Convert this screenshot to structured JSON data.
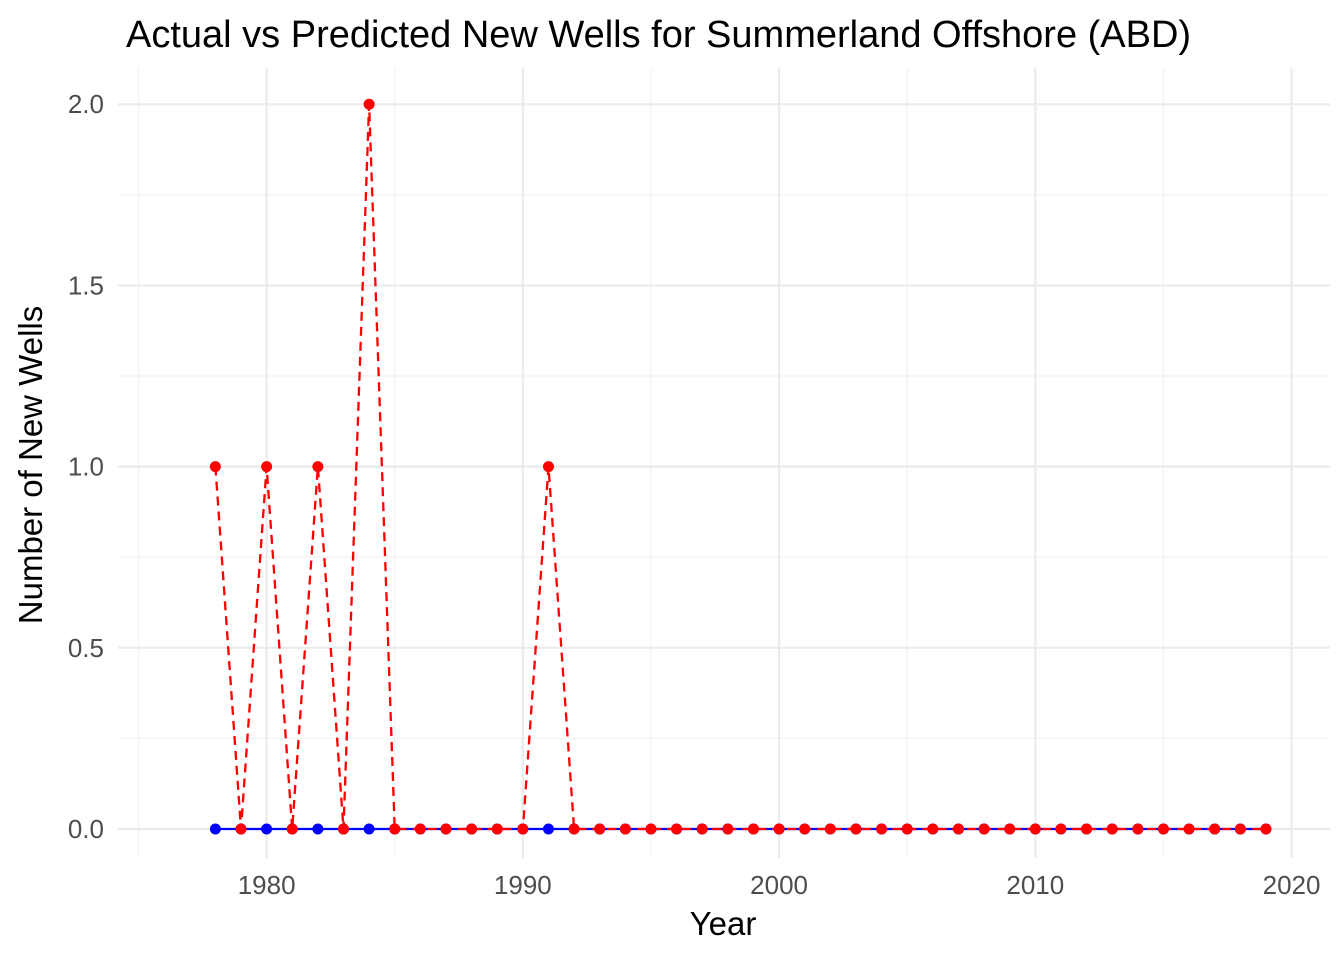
{
  "chart_data": {
    "type": "line",
    "title": "Actual vs Predicted New Wells for Summerland Offshore (ABD)",
    "xlabel": "Year",
    "ylabel": "Number of New Wells",
    "xlim": [
      1974.2,
      2021.5
    ],
    "ylim": [
      -0.08,
      2.1
    ],
    "x_ticks": [
      1980,
      1990,
      2000,
      2010,
      2020
    ],
    "y_ticks": [
      0.0,
      0.5,
      1.0,
      1.5,
      2.0
    ],
    "x_tick_labels": [
      "1980",
      "1990",
      "2000",
      "2010",
      "2020"
    ],
    "y_tick_labels": [
      "0.0",
      "0.5",
      "1.0",
      "1.5",
      "2.0"
    ],
    "grid": true,
    "legend": "none",
    "x": [
      1978,
      1979,
      1980,
      1981,
      1982,
      1983,
      1984,
      1985,
      1986,
      1987,
      1988,
      1989,
      1990,
      1991,
      1992,
      1993,
      1994,
      1995,
      1996,
      1997,
      1998,
      1999,
      2000,
      2001,
      2002,
      2003,
      2004,
      2005,
      2006,
      2007,
      2008,
      2009,
      2010,
      2011,
      2012,
      2013,
      2014,
      2015,
      2016,
      2017,
      2018,
      2019
    ],
    "series": [
      {
        "color": "#0000ff",
        "line_style": "solid",
        "values": [
          0,
          0,
          0,
          0,
          0,
          0,
          0,
          0,
          0,
          0,
          0,
          0,
          0,
          0,
          0,
          0,
          0,
          0,
          0,
          0,
          0,
          0,
          0,
          0,
          0,
          0,
          0,
          0,
          0,
          0,
          0,
          0,
          0,
          0,
          0,
          0,
          0,
          0,
          0,
          0,
          0,
          0
        ]
      },
      {
        "color": "#ff0000",
        "line_style": "dashed",
        "values": [
          1,
          0,
          1,
          0,
          1,
          0,
          2,
          0,
          0,
          0,
          0,
          0,
          0,
          1,
          0,
          0,
          0,
          0,
          0,
          0,
          0,
          0,
          0,
          0,
          0,
          0,
          0,
          0,
          0,
          0,
          0,
          0,
          0,
          0,
          0,
          0,
          0,
          0,
          0,
          0,
          0,
          0
        ]
      }
    ]
  }
}
